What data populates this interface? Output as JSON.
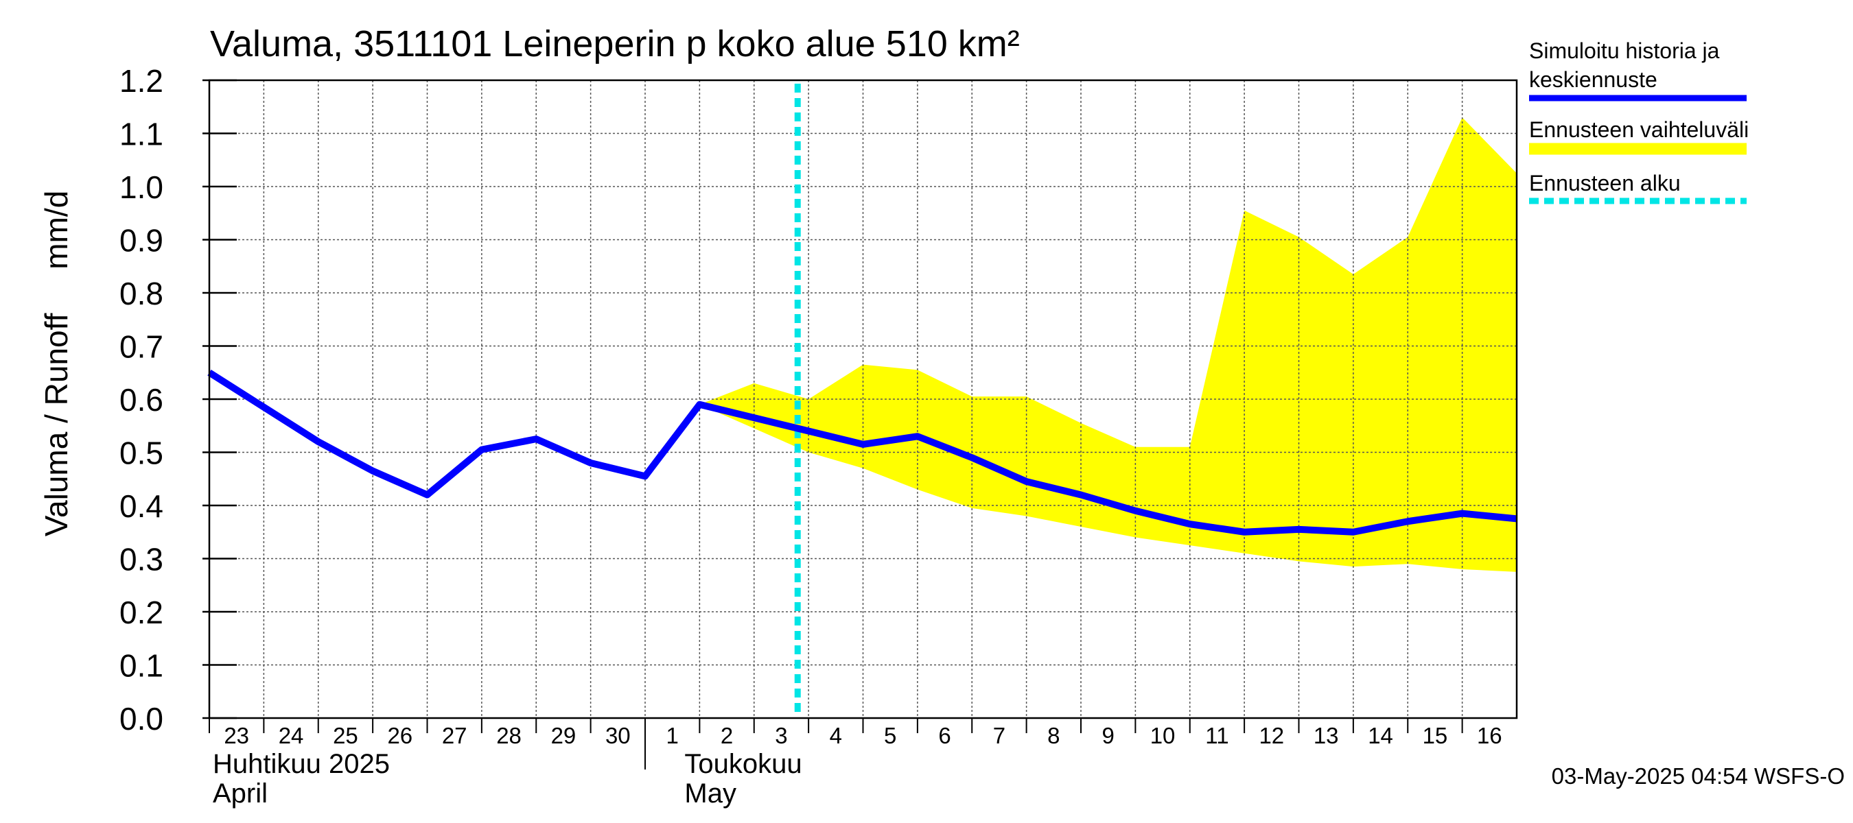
{
  "chart_data": {
    "type": "line",
    "title": "Valuma, 3511101 Leineperin p koko alue 510 km²",
    "ylabel": "Valuma / Runoff     mm/d",
    "ylim": [
      0.0,
      1.2
    ],
    "yticks": [
      "0.0",
      "0.1",
      "0.2",
      "0.3",
      "0.4",
      "0.5",
      "0.6",
      "0.7",
      "0.8",
      "0.9",
      "1.0",
      "1.1",
      "1.2"
    ],
    "x_day_labels": [
      "23",
      "24",
      "25",
      "26",
      "27",
      "28",
      "29",
      "30",
      "1",
      "2",
      "3",
      "4",
      "5",
      "6",
      "7",
      "8",
      "9",
      "10",
      "11",
      "12",
      "13",
      "14",
      "15",
      "16"
    ],
    "month_labels": [
      {
        "fi": "Huhtikuu  2025",
        "en": "April"
      },
      {
        "fi": "Toukokuu",
        "en": "May"
      }
    ],
    "grid": true,
    "legend_position": "right",
    "forecast_start_day": 10.8,
    "series": [
      {
        "name": "Simuloitu historia ja keskiennuste",
        "color": "#0000ff",
        "x": [
          0,
          1,
          2,
          3,
          4,
          5,
          6,
          7,
          8,
          9,
          10,
          11,
          12,
          13,
          14,
          15,
          16,
          17,
          18,
          19,
          20,
          21,
          22,
          23,
          24
        ],
        "values": [
          0.65,
          0.585,
          0.52,
          0.465,
          0.42,
          0.505,
          0.525,
          0.48,
          0.455,
          0.59,
          0.565,
          0.54,
          0.515,
          0.53,
          0.49,
          0.445,
          0.42,
          0.39,
          0.365,
          0.35,
          0.355,
          0.35,
          0.37,
          0.385,
          0.375
        ]
      }
    ],
    "band": {
      "name": "Ennusteen vaihteluväli",
      "color": "#ffff00",
      "x": [
        9,
        10,
        11,
        12,
        13,
        14,
        15,
        16,
        17,
        18,
        19,
        20,
        21,
        22,
        23,
        24
      ],
      "upper": [
        0.59,
        0.63,
        0.6,
        0.665,
        0.655,
        0.605,
        0.605,
        0.555,
        0.51,
        0.51,
        0.955,
        0.905,
        0.835,
        0.905,
        1.13,
        1.025
      ],
      "lower": [
        0.59,
        0.545,
        0.5,
        0.47,
        0.43,
        0.395,
        0.38,
        0.36,
        0.34,
        0.325,
        0.31,
        0.295,
        0.285,
        0.29,
        0.28,
        0.275
      ]
    },
    "legend": [
      {
        "label_line1": "Simuloitu historia ja",
        "label_line2": "keskiennuste",
        "color": "#0000ff",
        "style": "solid"
      },
      {
        "label_line1": "Ennusteen vaihteluväli",
        "label_line2": "",
        "color": "#ffff00",
        "style": "band"
      },
      {
        "label_line1": "Ennusteen alku",
        "label_line2": "",
        "color": "#00e5e5",
        "style": "dashed"
      }
    ],
    "footer": "03-May-2025 04:54 WSFS-O"
  }
}
